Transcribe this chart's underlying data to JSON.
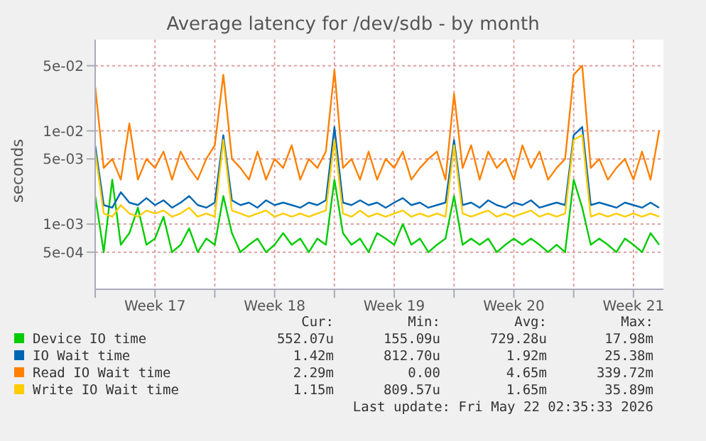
{
  "chart_data": {
    "type": "line",
    "title": "Average latency for /dev/sdb - by month",
    "ylabel": "seconds",
    "log": "y",
    "grid": true,
    "legend": "bottom",
    "marker": "none",
    "line_style": "solid",
    "x": [
      "2026-04-20T00:00",
      "2026-04-20T12:00",
      "2026-04-21T00:00",
      "2026-04-21T12:00",
      "2026-04-22T00:00",
      "2026-04-22T12:00",
      "2026-04-23T00:00",
      "2026-04-23T12:00",
      "2026-04-24T00:00",
      "2026-04-24T12:00",
      "2026-04-25T00:00",
      "2026-04-25T12:00",
      "2026-04-26T00:00",
      "2026-04-26T12:00",
      "2026-04-27T00:00",
      "2026-04-27T12:00",
      "2026-04-28T00:00",
      "2026-04-28T12:00",
      "2026-04-29T00:00",
      "2026-04-29T12:00",
      "2026-04-30T00:00",
      "2026-04-30T12:00",
      "2026-05-01T00:00",
      "2026-05-01T12:00",
      "2026-05-02T00:00",
      "2026-05-02T12:00",
      "2026-05-03T00:00",
      "2026-05-03T12:00",
      "2026-05-04T00:00",
      "2026-05-04T12:00",
      "2026-05-05T00:00",
      "2026-05-05T12:00",
      "2026-05-06T00:00",
      "2026-05-06T12:00",
      "2026-05-07T00:00",
      "2026-05-07T12:00",
      "2026-05-08T00:00",
      "2026-05-08T12:00",
      "2026-05-09T00:00",
      "2026-05-09T12:00",
      "2026-05-10T00:00",
      "2026-05-10T12:00",
      "2026-05-11T00:00",
      "2026-05-11T12:00",
      "2026-05-12T00:00",
      "2026-05-12T12:00",
      "2026-05-13T00:00",
      "2026-05-13T12:00",
      "2026-05-14T00:00",
      "2026-05-14T12:00",
      "2026-05-15T00:00",
      "2026-05-15T12:00",
      "2026-05-16T00:00",
      "2026-05-16T12:00",
      "2026-05-17T00:00",
      "2026-05-17T12:00",
      "2026-05-18T00:00",
      "2026-05-18T12:00",
      "2026-05-19T00:00",
      "2026-05-19T12:00",
      "2026-05-20T00:00",
      "2026-05-20T12:00",
      "2026-05-21T00:00",
      "2026-05-21T12:00",
      "2026-05-22T00:00",
      "2026-05-22T12:00",
      "2026-05-23T00:00"
    ],
    "xlim": [
      "2026-04-20T00:00",
      "2026-05-23T06:00"
    ],
    "xticks": [
      {
        "value": "2026-04-20T00:00",
        "label": null
      },
      {
        "value": "2026-04-23T12:00",
        "label": "Week 17"
      },
      {
        "value": "2026-04-27T00:00",
        "label": null
      },
      {
        "value": "2026-04-30T12:00",
        "label": "Week 18"
      },
      {
        "value": "2026-05-04T00:00",
        "label": null
      },
      {
        "value": "2026-05-07T12:00",
        "label": "Week 19"
      },
      {
        "value": "2026-05-11T00:00",
        "label": null
      },
      {
        "value": "2026-05-14T12:00",
        "label": "Week 20"
      },
      {
        "value": "2026-05-18T00:00",
        "label": null
      },
      {
        "value": "2026-05-21T12:00",
        "label": "Week 21"
      }
    ],
    "ylim": [
      0.0002,
      0.095
    ],
    "yticks": [
      {
        "value": 0.0005,
        "label": "5e-04"
      },
      {
        "value": 0.001,
        "label": "1e-03"
      },
      {
        "value": 0.005,
        "label": "5e-03"
      },
      {
        "value": 0.01,
        "label": "1e-02"
      },
      {
        "value": 0.05,
        "label": "5e-02"
      }
    ],
    "series": [
      {
        "name": "Device IO time",
        "color": "#00cc00",
        "values": [
          0.002,
          0.0005,
          0.003,
          0.0006,
          0.0008,
          0.0015,
          0.0006,
          0.0007,
          0.0012,
          0.0005,
          0.0006,
          0.0009,
          0.0005,
          0.0007,
          0.0006,
          0.002,
          0.0008,
          0.0005,
          0.0006,
          0.0007,
          0.0005,
          0.0006,
          0.0008,
          0.0006,
          0.0007,
          0.0005,
          0.0007,
          0.0006,
          0.003,
          0.0008,
          0.0006,
          0.0007,
          0.0005,
          0.0008,
          0.0007,
          0.0006,
          0.001,
          0.0006,
          0.0007,
          0.0005,
          0.0006,
          0.0007,
          0.002,
          0.0006,
          0.0007,
          0.0006,
          0.0007,
          0.0005,
          0.0006,
          0.0007,
          0.0006,
          0.0007,
          0.0006,
          0.0005,
          0.0006,
          0.0005,
          0.003,
          0.0015,
          0.0006,
          0.0007,
          0.0006,
          0.0005,
          0.0007,
          0.0006,
          0.0005,
          0.0008,
          0.0006
        ]
      },
      {
        "name": "IO Wait time",
        "color": "#0066b3",
        "values": [
          0.007,
          0.0016,
          0.0015,
          0.0022,
          0.0017,
          0.0016,
          0.0019,
          0.0016,
          0.0018,
          0.0015,
          0.0017,
          0.002,
          0.0016,
          0.0015,
          0.0017,
          0.009,
          0.0018,
          0.0016,
          0.0017,
          0.0015,
          0.0018,
          0.0016,
          0.0017,
          0.0016,
          0.0015,
          0.0017,
          0.0016,
          0.0018,
          0.011,
          0.0017,
          0.0016,
          0.0018,
          0.0016,
          0.0017,
          0.0015,
          0.0017,
          0.0019,
          0.0016,
          0.0017,
          0.0015,
          0.0016,
          0.0017,
          0.008,
          0.0016,
          0.0017,
          0.0015,
          0.0018,
          0.0016,
          0.0015,
          0.0017,
          0.0016,
          0.0018,
          0.0015,
          0.0016,
          0.0017,
          0.0016,
          0.009,
          0.011,
          0.0016,
          0.0017,
          0.0016,
          0.0015,
          0.0017,
          0.0016,
          0.0015,
          0.0017,
          0.0015
        ]
      },
      {
        "name": "Read IO Wait time",
        "color": "#ff8000",
        "values": [
          0.03,
          0.004,
          0.005,
          0.003,
          0.012,
          0.003,
          0.005,
          0.004,
          0.006,
          0.003,
          0.006,
          0.004,
          0.003,
          0.005,
          0.007,
          0.04,
          0.005,
          0.004,
          0.003,
          0.006,
          0.003,
          0.005,
          0.004,
          0.007,
          0.003,
          0.005,
          0.004,
          0.006,
          0.045,
          0.004,
          0.005,
          0.003,
          0.006,
          0.003,
          0.005,
          0.004,
          0.006,
          0.003,
          0.004,
          0.005,
          0.006,
          0.003,
          0.025,
          0.004,
          0.007,
          0.003,
          0.006,
          0.004,
          0.005,
          0.003,
          0.007,
          0.004,
          0.006,
          0.003,
          0.004,
          0.005,
          0.04,
          0.05,
          0.004,
          0.005,
          0.003,
          0.004,
          0.005,
          0.003,
          0.006,
          0.003,
          0.01
        ]
      },
      {
        "name": "Write IO Wait time",
        "color": "#ffcc00",
        "values": [
          0.006,
          0.0013,
          0.0012,
          0.0016,
          0.0013,
          0.0012,
          0.0014,
          0.0013,
          0.0014,
          0.0012,
          0.0013,
          0.0015,
          0.0012,
          0.0013,
          0.0012,
          0.008,
          0.0014,
          0.0013,
          0.0012,
          0.0013,
          0.0014,
          0.0012,
          0.0013,
          0.0012,
          0.0013,
          0.0012,
          0.0013,
          0.0014,
          0.008,
          0.0013,
          0.0012,
          0.0014,
          0.0012,
          0.0013,
          0.0012,
          0.0013,
          0.0014,
          0.0012,
          0.0013,
          0.0012,
          0.0013,
          0.0012,
          0.007,
          0.0013,
          0.0012,
          0.0013,
          0.0014,
          0.0012,
          0.0013,
          0.0012,
          0.0013,
          0.0014,
          0.0012,
          0.0013,
          0.0012,
          0.0013,
          0.008,
          0.009,
          0.0012,
          0.0013,
          0.0012,
          0.0013,
          0.0012,
          0.0013,
          0.0012,
          0.0013,
          0.0012
        ]
      }
    ],
    "annotations": [
      "Cur:",
      "Min:",
      "Avg:",
      "Max:",
      "552.07u",
      "155.09u",
      "729.28u",
      "17.98m",
      "1.42m",
      "812.70u",
      "1.92m",
      "25.38m",
      "2.29m",
      "0.00",
      "4.65m",
      "339.72m",
      "1.15m",
      "809.57u",
      "1.65m",
      "35.89m",
      "Last update: Fri May 22 02:35:33 2026"
    ]
  }
}
